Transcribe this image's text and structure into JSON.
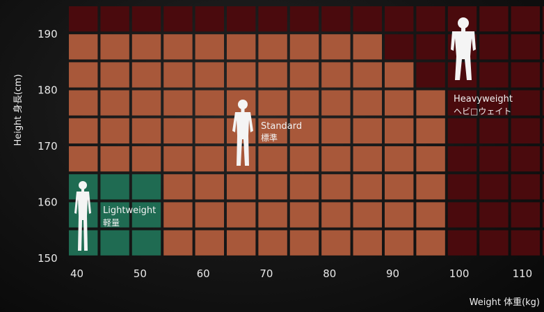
{
  "chart_data": {
    "type": "heatmap",
    "title": "",
    "xlabel": "Weight 体重(kg)",
    "ylabel": "Height 身長(cm)",
    "x_ticks": [
      40,
      50,
      60,
      70,
      80,
      90,
      100,
      110
    ],
    "y_ticks": [
      150,
      160,
      170,
      180,
      190
    ],
    "xlim": [
      40,
      113
    ],
    "ylim": [
      150,
      195
    ],
    "cell_width_kg": 5,
    "cell_height_cm": 5,
    "colors": {
      "light": "#1f6b52",
      "standard": "#a8583a",
      "heavy": "#4a0a0d",
      "grid": "#161616"
    },
    "categories": [
      {
        "key": "light",
        "name_en": "Lightweight",
        "name_jp": "軽量"
      },
      {
        "key": "standard",
        "name_en": "Standard",
        "name_jp": "標準"
      },
      {
        "key": "heavy",
        "name_en": "Heavyweight",
        "name_jp": "ヘビ□ウェイト"
      }
    ],
    "rows": [
      {
        "height_cm": 190,
        "cells": [
          "heavy",
          "heavy",
          "heavy",
          "heavy",
          "heavy",
          "heavy",
          "heavy",
          "heavy",
          "heavy",
          "heavy",
          "heavy",
          "heavy",
          "heavy",
          "heavy",
          "heavy",
          "heavy"
        ]
      },
      {
        "height_cm": 185,
        "cells": [
          "standard",
          "standard",
          "standard",
          "standard",
          "standard",
          "standard",
          "standard",
          "standard",
          "standard",
          "standard",
          "heavy",
          "heavy",
          "heavy",
          "heavy",
          "heavy",
          "heavy"
        ]
      },
      {
        "height_cm": 180,
        "cells": [
          "standard",
          "standard",
          "standard",
          "standard",
          "standard",
          "standard",
          "standard",
          "standard",
          "standard",
          "standard",
          "standard",
          "heavy",
          "heavy",
          "heavy",
          "heavy",
          "heavy"
        ]
      },
      {
        "height_cm": 175,
        "cells": [
          "standard",
          "standard",
          "standard",
          "standard",
          "standard",
          "standard",
          "standard",
          "standard",
          "standard",
          "standard",
          "standard",
          "standard",
          "heavy",
          "heavy",
          "heavy",
          "heavy"
        ]
      },
      {
        "height_cm": 170,
        "cells": [
          "standard",
          "standard",
          "standard",
          "standard",
          "standard",
          "standard",
          "standard",
          "standard",
          "standard",
          "standard",
          "standard",
          "standard",
          "heavy",
          "heavy",
          "heavy",
          "heavy"
        ]
      },
      {
        "height_cm": 165,
        "cells": [
          "standard",
          "standard",
          "standard",
          "standard",
          "standard",
          "standard",
          "standard",
          "standard",
          "standard",
          "standard",
          "standard",
          "standard",
          "heavy",
          "heavy",
          "heavy",
          "heavy"
        ]
      },
      {
        "height_cm": 160,
        "cells": [
          "light",
          "light",
          "light",
          "standard",
          "standard",
          "standard",
          "standard",
          "standard",
          "standard",
          "standard",
          "standard",
          "standard",
          "heavy",
          "heavy",
          "heavy",
          "heavy"
        ]
      },
      {
        "height_cm": 155,
        "cells": [
          "light",
          "light",
          "light",
          "standard",
          "standard",
          "standard",
          "standard",
          "standard",
          "standard",
          "standard",
          "standard",
          "standard",
          "heavy",
          "heavy",
          "heavy",
          "heavy"
        ]
      },
      {
        "height_cm": 150,
        "cells": [
          "light",
          "light",
          "light",
          "standard",
          "standard",
          "standard",
          "standard",
          "standard",
          "standard",
          "standard",
          "standard",
          "standard",
          "heavy",
          "heavy",
          "heavy",
          "heavy"
        ]
      }
    ]
  }
}
